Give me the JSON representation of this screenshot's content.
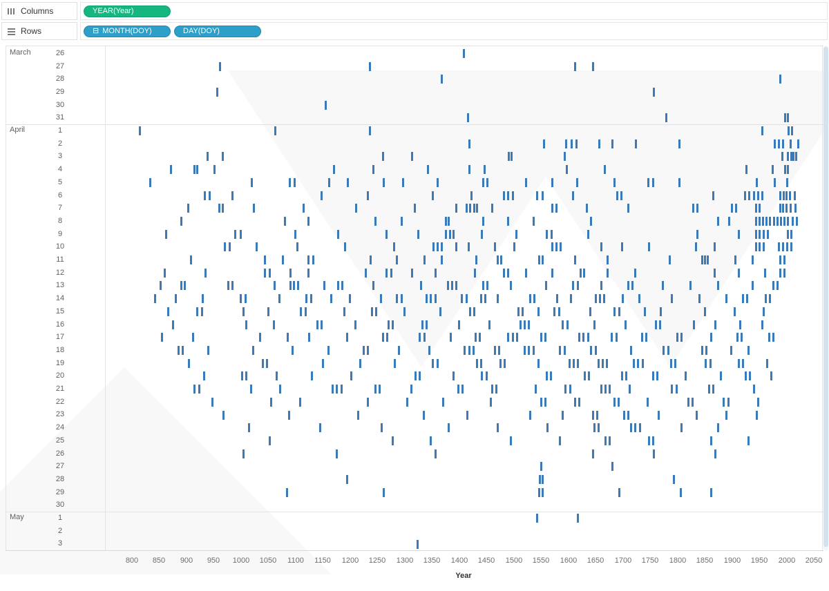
{
  "shelves": {
    "columns": {
      "label": "Columns",
      "pills": [
        {
          "text": "YEAR(Year)",
          "type": "continuous"
        }
      ]
    },
    "rows": {
      "label": "Rows",
      "pills": [
        {
          "prefix": "⊟",
          "text": "MONTH(DOY)",
          "type": "discrete"
        },
        {
          "text": "DAY(DOY)",
          "type": "discrete"
        }
      ]
    }
  },
  "colors": {
    "pill_green": "#15b77e",
    "pill_blue": "#2d9fc8",
    "mark_blue": "#3a7ab8",
    "scrollbar_thumb": "#d4e2ee"
  },
  "chart_data": {
    "type": "scatter",
    "subtype": "gantt-tick-marks",
    "title": "",
    "mark_color": "#3a7ab8",
    "x": {
      "label": "Year",
      "min": 750,
      "max": 2065,
      "ticks": [
        800,
        850,
        900,
        950,
        1000,
        1050,
        1100,
        1150,
        1200,
        1250,
        1300,
        1350,
        1400,
        1450,
        1500,
        1550,
        1600,
        1650,
        1700,
        1750,
        1800,
        1850,
        1900,
        1950,
        2000,
        2050
      ]
    },
    "row_groups": [
      {
        "month": "March",
        "days": [
          26,
          27,
          28,
          29,
          30,
          31
        ]
      },
      {
        "month": "April",
        "days": [
          1,
          2,
          3,
          4,
          5,
          6,
          7,
          8,
          9,
          10,
          11,
          12,
          13,
          14,
          15,
          16,
          17,
          18,
          19,
          20,
          21,
          22,
          23,
          24,
          25,
          26,
          27,
          28,
          29,
          30
        ]
      },
      {
        "month": "May",
        "days": [
          1,
          2,
          3
        ]
      }
    ],
    "marks": [
      {
        "month": "March",
        "day": 26,
        "years": [
          1409
        ]
      },
      {
        "month": "March",
        "day": 27,
        "years": [
          962,
          1236,
          1612,
          1645
        ]
      },
      {
        "month": "March",
        "day": 28,
        "years": [
          1368,
          1989
        ]
      },
      {
        "month": "March",
        "day": 29,
        "years": [
          956,
          1757
        ]
      },
      {
        "month": "March",
        "day": 30,
        "years": [
          1155
        ]
      },
      {
        "month": "March",
        "day": 31,
        "years": [
          1416,
          1779,
          1998,
          2002
        ]
      },
      {
        "month": "April",
        "day": 1,
        "years": [
          815,
          1063,
          1236,
          1955,
          2004,
          2010
        ]
      },
      {
        "month": "April",
        "day": 2,
        "years": [
          1418,
          1556,
          1596,
          1606,
          1615,
          1657,
          1681,
          1724,
          1804,
          1978,
          1986,
          1993,
          2008,
          2021
        ]
      },
      {
        "month": "April",
        "day": 3,
        "years": [
          938,
          966,
          1260,
          1313,
          1491,
          1496,
          1594,
          1992,
          2002,
          2009,
          2013,
          2018
        ]
      },
      {
        "month": "April",
        "day": 4,
        "years": [
          871,
          914,
          919,
          951,
          1170,
          1242,
          1343,
          1419,
          1447,
          1597,
          1667,
          1927,
          1975,
          1997,
          2003
        ]
      },
      {
        "month": "April",
        "day": 5,
        "years": [
          834,
          1020,
          1089,
          1098,
          1162,
          1196,
          1261,
          1297,
          1360,
          1444,
          1452,
          1523,
          1571,
          1616,
          1685,
          1747,
          1755,
          1804,
          1946,
          1979,
          2001
        ]
      },
      {
        "month": "April",
        "day": 6,
        "years": [
          933,
          942,
          984,
          1148,
          1233,
          1352,
          1423,
          1482,
          1489,
          1498,
          1543,
          1553,
          1609,
          1690,
          1697,
          1866,
          1924,
          1932,
          1940,
          1948,
          1956,
          1989,
          1995,
          2000,
          2006,
          2015
        ]
      },
      {
        "month": "April",
        "day": 7,
        "years": [
          903,
          960,
          967,
          1024,
          1115,
          1211,
          1318,
          1394,
          1414,
          1420,
          1427,
          1433,
          1460,
          1571,
          1578,
          1634,
          1710,
          1829,
          1837,
          1900,
          1908,
          1944,
          1951,
          1988,
          1994,
          2000,
          2007,
          2016
        ]
      },
      {
        "month": "April",
        "day": 8,
        "years": [
          890,
          1080,
          1124,
          1246,
          1294,
          1375,
          1381,
          1444,
          1489,
          1536,
          1641,
          1875,
          1895,
          1944,
          1950,
          1957,
          1963,
          1970,
          1977,
          1983,
          1990,
          1996,
          2003,
          2011,
          2019
        ]
      },
      {
        "month": "April",
        "day": 9,
        "years": [
          862,
          989,
          999,
          1100,
          1178,
          1266,
          1325,
          1376,
          1383,
          1390,
          1441,
          1505,
          1561,
          1569,
          1636,
          1837,
          1913,
          1944,
          1950,
          1958,
          1966,
          2002,
          2009
        ]
      },
      {
        "month": "April",
        "day": 10,
        "years": [
          970,
          979,
          1029,
          1103,
          1191,
          1280,
          1353,
          1360,
          1368,
          1394,
          1417,
          1465,
          1501,
          1571,
          1578,
          1586,
          1660,
          1698,
          1748,
          1834,
          1868,
          1944,
          1950,
          1958,
          1986,
          1993,
          2001,
          2009
        ]
      },
      {
        "month": "April",
        "day": 11,
        "years": [
          908,
          1044,
          1077,
          1124,
          1132,
          1237,
          1285,
          1336,
          1368,
          1431,
          1470,
          1477,
          1546,
          1553,
          1612,
          1672,
          1786,
          1846,
          1851,
          1856,
          1906,
          1938,
          1989,
          1996
        ]
      },
      {
        "month": "April",
        "day": 12,
        "years": [
          860,
          935,
          1044,
          1052,
          1090,
          1124,
          1229,
          1266,
          1275,
          1313,
          1356,
          1429,
          1482,
          1490,
          1523,
          1571,
          1622,
          1629,
          1672,
          1723,
          1868,
          1913,
          1961,
          1989,
          1996
        ]
      },
      {
        "month": "April",
        "day": 13,
        "years": [
          852,
          890,
          897,
          976,
          984,
          1062,
          1090,
          1097,
          1105,
          1153,
          1178,
          1186,
          1242,
          1330,
          1379,
          1387,
          1394,
          1444,
          1452,
          1495,
          1559,
          1609,
          1617,
          1660,
          1710,
          1717,
          1773,
          1824,
          1875,
          1938,
          1976,
          1984
        ]
      },
      {
        "month": "April",
        "day": 14,
        "years": [
          842,
          880,
          930,
          1000,
          1008,
          1070,
          1120,
          1128,
          1165,
          1200,
          1256,
          1286,
          1294,
          1340,
          1348,
          1356,
          1405,
          1413,
          1440,
          1448,
          1470,
          1530,
          1538,
          1580,
          1605,
          1650,
          1658,
          1666,
          1700,
          1730,
          1790,
          1840,
          1890,
          1920,
          1928,
          1962,
          1970
        ]
      },
      {
        "month": "April",
        "day": 15,
        "years": [
          866,
          920,
          928,
          1005,
          1050,
          1110,
          1118,
          1190,
          1240,
          1248,
          1300,
          1365,
          1420,
          1428,
          1508,
          1516,
          1545,
          1575,
          1583,
          1640,
          1685,
          1693,
          1740,
          1770,
          1850,
          1905,
          1958
        ]
      },
      {
        "month": "April",
        "day": 16,
        "years": [
          875,
          1010,
          1060,
          1140,
          1148,
          1210,
          1270,
          1278,
          1332,
          1340,
          1400,
          1455,
          1512,
          1520,
          1528,
          1590,
          1598,
          1648,
          1705,
          1760,
          1768,
          1830,
          1870,
          1915,
          1955
        ]
      },
      {
        "month": "April",
        "day": 17,
        "years": [
          855,
          912,
          1035,
          1085,
          1125,
          1195,
          1260,
          1268,
          1328,
          1336,
          1385,
          1430,
          1438,
          1490,
          1498,
          1506,
          1550,
          1558,
          1620,
          1628,
          1636,
          1680,
          1688,
          1735,
          1743,
          1800,
          1808,
          1862,
          1910,
          1918,
          1968,
          1976
        ]
      },
      {
        "month": "April",
        "day": 18,
        "years": [
          885,
          893,
          940,
          1022,
          1095,
          1160,
          1225,
          1233,
          1290,
          1345,
          1410,
          1418,
          1426,
          1465,
          1473,
          1520,
          1528,
          1536,
          1585,
          1593,
          1642,
          1650,
          1715,
          1775,
          1783,
          1845,
          1853,
          1898,
          1930
        ]
      },
      {
        "month": "April",
        "day": 19,
        "years": [
          905,
          1040,
          1048,
          1150,
          1218,
          1282,
          1352,
          1360,
          1432,
          1440,
          1475,
          1483,
          1545,
          1602,
          1610,
          1618,
          1655,
          1663,
          1671,
          1720,
          1728,
          1736,
          1788,
          1796,
          1852,
          1860,
          1912,
          1920,
          1965
        ]
      },
      {
        "month": "April",
        "day": 20,
        "years": [
          932,
          1002,
          1010,
          1065,
          1130,
          1202,
          1320,
          1328,
          1390,
          1442,
          1450,
          1560,
          1568,
          1630,
          1638,
          1698,
          1706,
          1755,
          1763,
          1815,
          1880,
          1925,
          1933,
          1972
        ]
      },
      {
        "month": "April",
        "day": 21,
        "years": [
          915,
          923,
          1018,
          1072,
          1168,
          1176,
          1184,
          1246,
          1254,
          1312,
          1398,
          1406,
          1460,
          1468,
          1540,
          1595,
          1603,
          1660,
          1668,
          1676,
          1712,
          1790,
          1798,
          1858,
          1866,
          1940
        ]
      },
      {
        "month": "April",
        "day": 22,
        "years": [
          948,
          1055,
          1108,
          1232,
          1305,
          1370,
          1458,
          1550,
          1558,
          1612,
          1620,
          1684,
          1692,
          1745,
          1820,
          1828,
          1885,
          1893,
          1948
        ]
      },
      {
        "month": "April",
        "day": 23,
        "years": [
          968,
          1088,
          1215,
          1335,
          1415,
          1530,
          1590,
          1645,
          1653,
          1702,
          1710,
          1765,
          1835,
          1890,
          1945
        ]
      },
      {
        "month": "April",
        "day": 24,
        "years": [
          1015,
          1145,
          1258,
          1380,
          1470,
          1562,
          1648,
          1656,
          1715,
          1723,
          1731,
          1808,
          1875
        ]
      },
      {
        "month": "April",
        "day": 25,
        "years": [
          1052,
          1278,
          1348,
          1495,
          1585,
          1668,
          1676,
          1748,
          1756,
          1862,
          1930
        ]
      },
      {
        "month": "April",
        "day": 26,
        "years": [
          1004,
          1175,
          1356,
          1645,
          1757,
          1870
        ]
      },
      {
        "month": "April",
        "day": 27,
        "years": [
          1550,
          1681
        ]
      },
      {
        "month": "April",
        "day": 28,
        "years": [
          1195,
          1548,
          1553,
          1793
        ]
      },
      {
        "month": "April",
        "day": 29,
        "years": [
          1084,
          1262,
          1546,
          1553,
          1694,
          1806,
          1862
        ]
      },
      {
        "month": "April",
        "day": 30,
        "years": []
      },
      {
        "month": "May",
        "day": 1,
        "years": [
          1543,
          1617
        ]
      },
      {
        "month": "May",
        "day": 2,
        "years": []
      },
      {
        "month": "May",
        "day": 3,
        "years": [
          1324
        ]
      }
    ]
  }
}
